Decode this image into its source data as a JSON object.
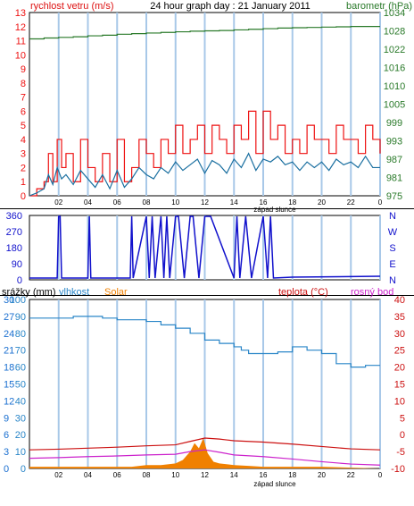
{
  "header": {
    "wind_label": "rychlost vetru (m/s)",
    "title": "24 hour graph day : 21 January 2011",
    "baro_label": "barometr (hPa)"
  },
  "bottom_panel_labels": {
    "rain": "srážky (mm)",
    "humidity": "vlhkost",
    "solar": "Solar",
    "temp": "teplota (°C)",
    "dew": "rosný bod"
  },
  "sunset_label": "západ slunce",
  "colors": {
    "wind": "#ee1111",
    "gust": "#cc0000",
    "avg_wind": "#1a6fa0",
    "pressure": "#2a7a2a",
    "direction": "#1111cc",
    "humidity": "#2a86c8",
    "solar": "#f08000",
    "temp": "#cc1111",
    "dew": "#cc22cc",
    "rain": "#1a6fd0",
    "grid": "#a8c8e8"
  },
  "chart_data": [
    {
      "type": "line",
      "title": "24 hour graph day : 21 January 2011",
      "x_ticks": [
        "02",
        "04",
        "06",
        "08",
        "10",
        "12",
        "14",
        "16",
        "18",
        "20",
        "22",
        "0"
      ],
      "x_label_marker": "západ slunce",
      "ylabel_left": "rychlost vetru (m/s)",
      "ylabel_right": "barometr (hPa)",
      "y_left_ticks": [
        "0",
        "1",
        "2",
        "3",
        "4",
        "5",
        "6",
        "7",
        "8",
        "9",
        "10",
        "11",
        "12",
        "13"
      ],
      "y_right_ticks": [
        "975",
        "981",
        "987",
        "993",
        "999",
        "1005",
        "1010",
        "1016",
        "1022",
        "1028",
        "1034"
      ],
      "xlim": [
        0,
        24
      ],
      "ylim_left": [
        0,
        13
      ],
      "ylim_right": [
        975,
        1034
      ],
      "series": [
        {
          "name": "wind gust",
          "axis": "left",
          "x": [
            0,
            0.5,
            1.0,
            1.3,
            1.6,
            1.9,
            2.2,
            2.5,
            3.0,
            3.5,
            4.0,
            4.5,
            5.0,
            5.5,
            6.0,
            6.5,
            7.0,
            7.5,
            8.0,
            8.5,
            9.0,
            9.5,
            10.0,
            10.5,
            11.0,
            11.5,
            12.0,
            12.5,
            13.0,
            13.5,
            14.0,
            14.5,
            15.0,
            15.5,
            16.0,
            16.5,
            17.0,
            17.5,
            18.0,
            18.5,
            19.0,
            19.5,
            20.0,
            20.5,
            21.0,
            21.5,
            22.0,
            22.5,
            23.0,
            23.5,
            24.0
          ],
          "values": [
            0,
            0.5,
            1,
            3,
            1,
            4,
            2,
            3,
            1,
            4,
            2,
            1,
            3,
            1,
            4,
            1,
            2,
            4,
            3,
            2,
            4,
            3,
            5,
            3,
            4,
            5,
            3,
            5,
            4,
            3,
            5,
            4,
            6,
            3,
            6,
            4,
            5,
            3,
            4,
            3,
            5,
            4,
            4,
            3,
            5,
            4,
            4,
            3,
            5,
            4,
            3
          ]
        },
        {
          "name": "average wind",
          "axis": "left",
          "x": [
            0,
            0.5,
            1.0,
            1.3,
            1.6,
            1.9,
            2.2,
            2.5,
            3.0,
            3.5,
            4.0,
            4.5,
            5.0,
            5.5,
            6.0,
            6.5,
            7.0,
            7.5,
            8.0,
            8.5,
            9.0,
            9.5,
            10.0,
            10.5,
            11.0,
            11.5,
            12.0,
            12.5,
            13.0,
            13.5,
            14.0,
            14.5,
            15.0,
            15.5,
            16.0,
            16.5,
            17.0,
            17.5,
            18.0,
            18.5,
            19.0,
            19.5,
            20.0,
            20.5,
            21.0,
            21.5,
            22.0,
            22.5,
            23.0,
            23.5,
            24.0
          ],
          "values": [
            0,
            0.2,
            0.5,
            1.5,
            0.8,
            2.0,
            1.2,
            1.5,
            0.8,
            1.8,
            1.2,
            0.6,
            1.5,
            0.5,
            1.8,
            0.6,
            1.2,
            2.0,
            1.5,
            1.2,
            2.0,
            1.6,
            2.4,
            1.8,
            2.2,
            2.6,
            1.6,
            2.5,
            2.2,
            1.6,
            2.6,
            2.0,
            3.0,
            1.8,
            2.6,
            2.4,
            2.8,
            2.2,
            2.4,
            1.8,
            2.4,
            2.0,
            2.4,
            1.8,
            2.6,
            2.2,
            2.4,
            2.0,
            2.8,
            2.0,
            2.0
          ]
        },
        {
          "name": "barometr",
          "axis": "right",
          "x": [
            0,
            1,
            2,
            3,
            4,
            5,
            6,
            7,
            8,
            9,
            10,
            11,
            12,
            13,
            14,
            15,
            16,
            17,
            18,
            19,
            20,
            21,
            22,
            23,
            24
          ],
          "values": [
            1025.5,
            1025.8,
            1026,
            1026.2,
            1026.5,
            1026.7,
            1027,
            1027.2,
            1027.4,
            1027.6,
            1027.8,
            1028,
            1028.1,
            1028.2,
            1028.4,
            1028.6,
            1028.8,
            1029,
            1029.1,
            1029.2,
            1029.3,
            1029.4,
            1029.5,
            1029.5,
            1029.5
          ]
        }
      ]
    },
    {
      "type": "line",
      "x_ticks": [
        "02",
        "04",
        "06",
        "08",
        "10",
        "12",
        "14",
        "16",
        "18",
        "20",
        "22",
        "0"
      ],
      "y_left_ticks": [
        "0",
        "90",
        "180",
        "270",
        "360"
      ],
      "y_right_ticks": [
        "N",
        "E",
        "S",
        "W",
        "N"
      ],
      "xlim": [
        0,
        24
      ],
      "ylim": [
        0,
        360
      ],
      "series": [
        {
          "name": "wind direction",
          "x": [
            0,
            1.9,
            2.0,
            2.1,
            2.2,
            4.0,
            4.1,
            4.2,
            6.9,
            7.0,
            7.1,
            8.0,
            8.2,
            8.4,
            8.6,
            9.0,
            9.2,
            9.4,
            9.6,
            10.0,
            10.2,
            10.6,
            11.0,
            11.2,
            11.6,
            12.0,
            12.4,
            14.0,
            14.2,
            14.4,
            14.8,
            15.2,
            16.0,
            16.3,
            16.5,
            16.7,
            18.0,
            24.0
          ],
          "values": [
            10,
            10,
            355,
            355,
            10,
            10,
            355,
            10,
            10,
            355,
            10,
            355,
            10,
            355,
            10,
            355,
            10,
            355,
            10,
            355,
            355,
            10,
            355,
            355,
            10,
            355,
            355,
            10,
            355,
            10,
            355,
            10,
            355,
            10,
            355,
            10,
            15,
            20
          ]
        }
      ]
    },
    {
      "type": "line",
      "x_ticks": [
        "02",
        "04",
        "06",
        "08",
        "10",
        "12",
        "14",
        "16",
        "18",
        "20",
        "22",
        "0"
      ],
      "x_label_marker": "západ slunce",
      "ylabel_left": "srážky (mm)",
      "ylabel_right": "teplota (°C)",
      "y_left_ticks_rain": [
        "0",
        "3",
        "6",
        "9",
        "12",
        "15",
        "18",
        "21",
        "24",
        "27",
        "30"
      ],
      "y_left_ticks_humidity": [
        "0",
        "10",
        "20",
        "30",
        "40",
        "50",
        "60",
        "70",
        "80",
        "90",
        "100"
      ],
      "y_right_ticks": [
        "-10",
        "-5",
        "0",
        "5",
        "10",
        "15",
        "20",
        "25",
        "30",
        "35",
        "40"
      ],
      "xlim": [
        0,
        24
      ],
      "ylim_humidity": [
        0,
        100
      ],
      "ylim_temp": [
        -10,
        40
      ],
      "series": [
        {
          "name": "vlhkost",
          "axis": "humidity",
          "x": [
            0,
            2,
            3,
            4,
            5,
            6,
            8,
            9,
            10,
            11,
            12,
            13,
            14,
            14.5,
            15,
            16,
            17,
            18,
            18.5,
            19,
            20,
            21,
            22,
            23,
            24
          ],
          "values": [
            89,
            89,
            90,
            90,
            89,
            88,
            87,
            85,
            83,
            80,
            76,
            74,
            72,
            70,
            68,
            68,
            69,
            72,
            72,
            70,
            68,
            62,
            60,
            61,
            61
          ]
        },
        {
          "name": "teplota",
          "axis": "temp",
          "x": [
            0,
            2,
            4,
            6,
            8,
            10,
            11,
            12,
            13,
            14,
            16,
            18,
            20,
            22,
            24
          ],
          "values": [
            -4.5,
            -4.3,
            -4,
            -3.7,
            -3.3,
            -3,
            -2,
            -1,
            -1.3,
            -1.8,
            -2.2,
            -2.8,
            -3.5,
            -4.2,
            -4.5
          ]
        },
        {
          "name": "rosný bod",
          "axis": "temp",
          "x": [
            0,
            2,
            4,
            6,
            8,
            10,
            11,
            12,
            13,
            14,
            16,
            18,
            20,
            22,
            24
          ],
          "values": [
            -7,
            -6.8,
            -6.5,
            -6.3,
            -6,
            -5.8,
            -5,
            -4.5,
            -5.2,
            -6,
            -6.5,
            -7.2,
            -8,
            -8.7,
            -9
          ]
        },
        {
          "name": "Solar",
          "axis": "solar",
          "x": [
            0,
            7,
            8,
            9,
            10,
            10.5,
            11,
            11.3,
            11.6,
            11.9,
            12.2,
            12.6,
            13,
            14,
            15,
            16,
            17,
            20,
            24
          ],
          "values": [
            1,
            1,
            2,
            2,
            3,
            5,
            10,
            15,
            12,
            18,
            9,
            4,
            3,
            2,
            1.5,
            1,
            1,
            1,
            0
          ]
        }
      ]
    }
  ]
}
